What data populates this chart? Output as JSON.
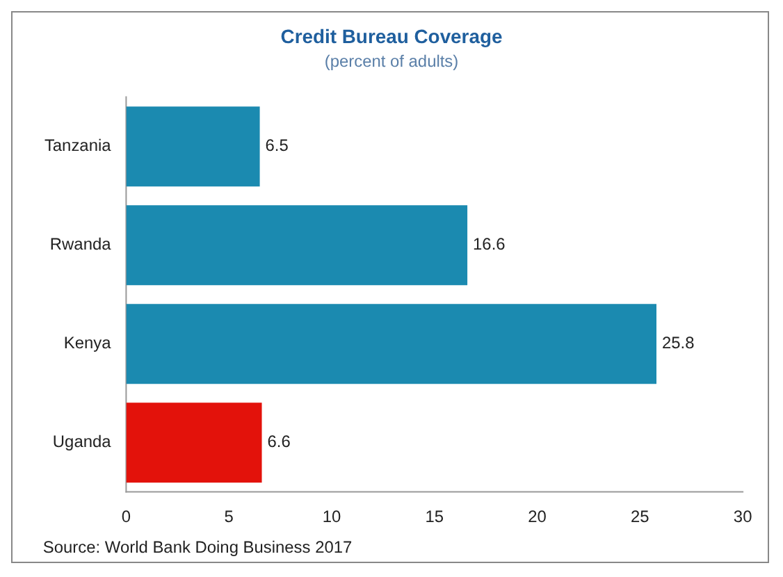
{
  "chart_data": {
    "type": "bar",
    "orientation": "horizontal",
    "title": "Credit Bureau Coverage",
    "subtitle": "(percent of adults)",
    "categories": [
      "Tanzania",
      "Rwanda",
      "Kenya",
      "Uganda"
    ],
    "values": [
      6.5,
      16.6,
      25.8,
      6.6
    ],
    "colors": [
      "#1b8ab0",
      "#1b8ab0",
      "#1b8ab0",
      "#e3120b"
    ],
    "xlim": [
      0,
      30
    ],
    "xticks": [
      0,
      5,
      10,
      15,
      20,
      25,
      30
    ],
    "grid": false,
    "legend": false,
    "data_labels": true,
    "annotations": [
      "Source: World Bank Doing Business 2017"
    ]
  }
}
